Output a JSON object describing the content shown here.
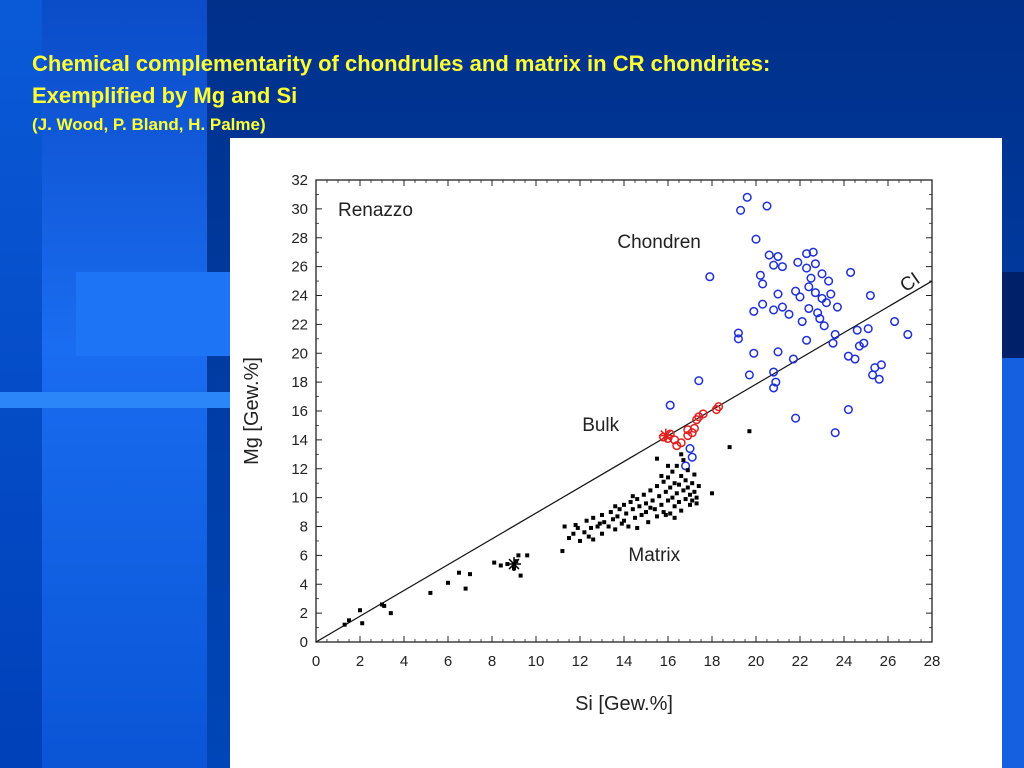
{
  "slide": {
    "title_line1": "Chemical complementarity of chondrules and matrix in CR chondrites:",
    "title_line2": "Exemplified by Mg and Si",
    "credit": "(J. Wood, P. Bland, H. Palme)"
  },
  "chart_data": {
    "type": "scatter",
    "title": "Renazzo",
    "xlabel": "Si [Gew.%]",
    "ylabel": "Mg [Gew.%]",
    "xlim": [
      0,
      28
    ],
    "ylim": [
      0,
      32
    ],
    "xticks": [
      0,
      2,
      4,
      6,
      8,
      10,
      12,
      14,
      16,
      18,
      20,
      22,
      24,
      26,
      28
    ],
    "yticks": [
      0,
      2,
      4,
      6,
      8,
      10,
      12,
      14,
      16,
      18,
      20,
      22,
      24,
      26,
      28,
      30,
      32
    ],
    "grid": false,
    "reference_line": {
      "label": "CI",
      "x": [
        0,
        28
      ],
      "y": [
        0,
        25
      ]
    },
    "series": [
      {
        "name": "Chondren",
        "color": "#1f2fd6",
        "marker": "open-circle",
        "points": [
          [
            19.6,
            30.8
          ],
          [
            19.3,
            29.9
          ],
          [
            20.5,
            30.2
          ],
          [
            20.0,
            27.9
          ],
          [
            20.6,
            26.8
          ],
          [
            21.0,
            26.7
          ],
          [
            20.8,
            26.1
          ],
          [
            21.2,
            26.0
          ],
          [
            22.3,
            26.9
          ],
          [
            22.6,
            27.0
          ],
          [
            21.9,
            26.3
          ],
          [
            22.3,
            25.9
          ],
          [
            22.7,
            26.2
          ],
          [
            24.3,
            25.6
          ],
          [
            20.2,
            25.4
          ],
          [
            20.3,
            24.8
          ],
          [
            21.0,
            24.1
          ],
          [
            21.8,
            24.3
          ],
          [
            22.4,
            24.6
          ],
          [
            22.5,
            25.2
          ],
          [
            23.0,
            25.5
          ],
          [
            23.3,
            25.0
          ],
          [
            23.4,
            24.1
          ],
          [
            22.7,
            24.2
          ],
          [
            23.2,
            23.5
          ],
          [
            23.7,
            23.2
          ],
          [
            22.4,
            23.1
          ],
          [
            22.0,
            23.9
          ],
          [
            22.8,
            22.8
          ],
          [
            21.5,
            22.7
          ],
          [
            21.2,
            23.2
          ],
          [
            20.8,
            23.0
          ],
          [
            20.3,
            23.4
          ],
          [
            19.9,
            22.9
          ],
          [
            22.1,
            22.2
          ],
          [
            22.9,
            22.4
          ],
          [
            23.1,
            21.9
          ],
          [
            23.6,
            21.3
          ],
          [
            24.6,
            21.6
          ],
          [
            25.1,
            21.7
          ],
          [
            26.3,
            22.2
          ],
          [
            26.9,
            21.3
          ],
          [
            25.2,
            24.0
          ],
          [
            23.0,
            23.8
          ],
          [
            19.2,
            21.4
          ],
          [
            19.2,
            21.0
          ],
          [
            19.9,
            20.0
          ],
          [
            21.0,
            20.1
          ],
          [
            21.7,
            19.6
          ],
          [
            24.2,
            19.8
          ],
          [
            24.7,
            20.5
          ],
          [
            24.9,
            20.7
          ],
          [
            24.5,
            19.6
          ],
          [
            25.4,
            19.0
          ],
          [
            25.7,
            19.2
          ],
          [
            25.3,
            18.5
          ],
          [
            25.6,
            18.2
          ],
          [
            19.7,
            18.5
          ],
          [
            20.8,
            18.7
          ],
          [
            20.9,
            18.0
          ],
          [
            20.8,
            17.6
          ],
          [
            17.9,
            25.3
          ],
          [
            17.4,
            18.1
          ],
          [
            21.8,
            15.5
          ],
          [
            24.2,
            16.1
          ],
          [
            23.6,
            14.5
          ],
          [
            16.1,
            16.4
          ],
          [
            17.0,
            13.4
          ],
          [
            17.1,
            12.8
          ],
          [
            16.8,
            12.2
          ],
          [
            22.3,
            20.9
          ],
          [
            23.5,
            20.7
          ]
        ]
      },
      {
        "name": "Bulk",
        "color": "#e02020",
        "marker": "open-circle",
        "points": [
          [
            15.8,
            14.2
          ],
          [
            16.1,
            14.4
          ],
          [
            16.3,
            14.0
          ],
          [
            16.4,
            13.6
          ],
          [
            16.6,
            13.8
          ],
          [
            16.9,
            14.3
          ],
          [
            16.9,
            14.7
          ],
          [
            17.1,
            14.5
          ],
          [
            17.2,
            14.8
          ],
          [
            17.3,
            15.4
          ],
          [
            17.4,
            15.6
          ],
          [
            17.6,
            15.8
          ],
          [
            18.2,
            16.1
          ],
          [
            18.3,
            16.3
          ],
          [
            16.0,
            14.1
          ]
        ]
      },
      {
        "name": "Matrix",
        "color": "#000000",
        "marker": "filled-square",
        "points": [
          [
            1.3,
            1.2
          ],
          [
            1.5,
            1.5
          ],
          [
            2.0,
            2.2
          ],
          [
            2.1,
            1.3
          ],
          [
            3.0,
            2.6
          ],
          [
            3.1,
            2.5
          ],
          [
            3.4,
            2.0
          ],
          [
            5.2,
            3.4
          ],
          [
            6.0,
            4.1
          ],
          [
            6.8,
            3.7
          ],
          [
            6.5,
            4.8
          ],
          [
            7.0,
            4.7
          ],
          [
            8.1,
            5.5
          ],
          [
            8.4,
            5.3
          ],
          [
            8.7,
            5.4
          ],
          [
            9.0,
            5.1
          ],
          [
            9.1,
            5.6
          ],
          [
            9.2,
            6.0
          ],
          [
            9.3,
            4.6
          ],
          [
            9.6,
            6.0
          ],
          [
            11.2,
            6.3
          ],
          [
            11.3,
            8.0
          ],
          [
            11.5,
            7.2
          ],
          [
            11.7,
            7.5
          ],
          [
            11.8,
            8.1
          ],
          [
            12.0,
            7.0
          ],
          [
            12.2,
            7.6
          ],
          [
            12.3,
            8.4
          ],
          [
            12.4,
            7.3
          ],
          [
            12.5,
            7.9
          ],
          [
            12.6,
            8.6
          ],
          [
            12.8,
            8.0
          ],
          [
            13.0,
            7.5
          ],
          [
            13.0,
            8.8
          ],
          [
            13.1,
            8.3
          ],
          [
            13.3,
            8.0
          ],
          [
            13.4,
            9.0
          ],
          [
            13.5,
            8.5
          ],
          [
            13.6,
            7.8
          ],
          [
            13.7,
            8.7
          ],
          [
            13.8,
            9.2
          ],
          [
            14.0,
            8.4
          ],
          [
            14.0,
            9.5
          ],
          [
            14.1,
            8.9
          ],
          [
            14.2,
            8.0
          ],
          [
            14.3,
            9.7
          ],
          [
            14.4,
            9.2
          ],
          [
            14.5,
            8.6
          ],
          [
            14.6,
            9.9
          ],
          [
            14.7,
            9.4
          ],
          [
            14.8,
            8.8
          ],
          [
            14.9,
            10.2
          ],
          [
            15.0,
            9.6
          ],
          [
            15.0,
            9.0
          ],
          [
            15.1,
            8.3
          ],
          [
            15.2,
            10.5
          ],
          [
            15.3,
            9.8
          ],
          [
            15.4,
            9.2
          ],
          [
            15.5,
            10.8
          ],
          [
            15.5,
            8.7
          ],
          [
            15.6,
            10.1
          ],
          [
            15.7,
            9.5
          ],
          [
            15.8,
            11.1
          ],
          [
            15.8,
            9.0
          ],
          [
            15.9,
            10.4
          ],
          [
            16.0,
            9.8
          ],
          [
            16.0,
            11.4
          ],
          [
            16.1,
            10.7
          ],
          [
            16.1,
            8.9
          ],
          [
            16.2,
            10.0
          ],
          [
            16.2,
            11.8
          ],
          [
            16.3,
            9.4
          ],
          [
            16.3,
            11.0
          ],
          [
            16.4,
            10.3
          ],
          [
            16.4,
            12.2
          ],
          [
            16.5,
            9.7
          ],
          [
            16.5,
            10.9
          ],
          [
            16.6,
            11.5
          ],
          [
            16.6,
            9.1
          ],
          [
            16.7,
            10.5
          ],
          [
            16.7,
            12.6
          ],
          [
            16.8,
            11.2
          ],
          [
            16.8,
            9.9
          ],
          [
            16.9,
            10.7
          ],
          [
            16.9,
            11.9
          ],
          [
            17.0,
            9.5
          ],
          [
            17.0,
            10.2
          ],
          [
            17.1,
            11.0
          ],
          [
            17.1,
            9.8
          ],
          [
            17.2,
            10.4
          ],
          [
            17.2,
            11.6
          ],
          [
            17.3,
            9.6
          ],
          [
            17.3,
            10.0
          ],
          [
            17.4,
            10.8
          ],
          [
            16.0,
            12.2
          ],
          [
            15.5,
            12.7
          ],
          [
            15.7,
            11.5
          ],
          [
            16.6,
            13.0
          ],
          [
            18.0,
            10.3
          ],
          [
            18.8,
            13.5
          ],
          [
            19.7,
            14.6
          ],
          [
            12.9,
            8.2
          ],
          [
            13.9,
            8.2
          ],
          [
            14.6,
            7.9
          ],
          [
            15.2,
            9.3
          ],
          [
            16.3,
            8.6
          ],
          [
            14.4,
            10.1
          ],
          [
            13.6,
            9.4
          ],
          [
            12.6,
            7.1
          ],
          [
            11.9,
            7.9
          ],
          [
            15.9,
            8.8
          ]
        ]
      }
    ],
    "annotations": [
      {
        "text": "Renazzo",
        "x": 1.0,
        "y": 29.5
      },
      {
        "text": "Chondren",
        "x": 13.7,
        "y": 27.3
      },
      {
        "text": "Bulk",
        "x": 12.1,
        "y": 14.6
      },
      {
        "text": "Matrix",
        "x": 14.2,
        "y": 5.6
      },
      {
        "text": "CI",
        "x": 26.8,
        "y": 24.2
      }
    ]
  }
}
